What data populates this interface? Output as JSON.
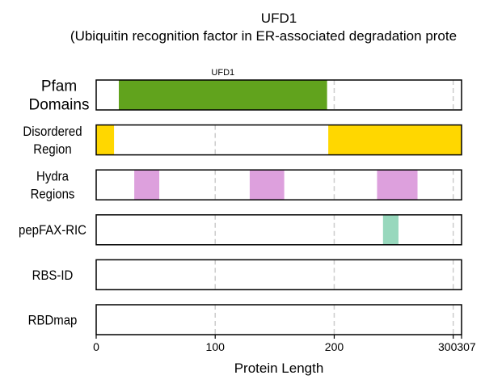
{
  "chart_data": {
    "type": "bar",
    "title": "UFD1",
    "subtitle": "(Ubiquitin recognition factor in ER-associated degradation prote",
    "xlabel": "Protein Length",
    "ylabel": "",
    "xlim": [
      0,
      307
    ],
    "x_ticks": [
      0,
      100,
      200,
      300,
      307
    ],
    "gridlines_at": [
      100,
      200,
      300
    ],
    "grid": true,
    "rows": [
      {
        "label": "Pfam\nDomains",
        "segments": [
          {
            "start": 19,
            "end": 194,
            "color": "#61a31d",
            "label": "UFD1"
          }
        ]
      },
      {
        "label": "Disordered\nRegion",
        "segments": [
          {
            "start": 0,
            "end": 15,
            "color": "#ffd700"
          },
          {
            "start": 195,
            "end": 307,
            "color": "#ffd700"
          }
        ]
      },
      {
        "label": "Hydra\nRegions",
        "segments": [
          {
            "start": 32,
            "end": 53,
            "color": "#dda0dd"
          },
          {
            "start": 129,
            "end": 158,
            "color": "#dda0dd"
          },
          {
            "start": 236,
            "end": 270,
            "color": "#dda0dd"
          }
        ]
      },
      {
        "label": "pepFAX-RIC",
        "segments": [
          {
            "start": 241,
            "end": 254,
            "color": "#98d8bd"
          }
        ]
      },
      {
        "label": "RBS-ID",
        "segments": []
      },
      {
        "label": "RBDmap",
        "segments": []
      }
    ]
  }
}
